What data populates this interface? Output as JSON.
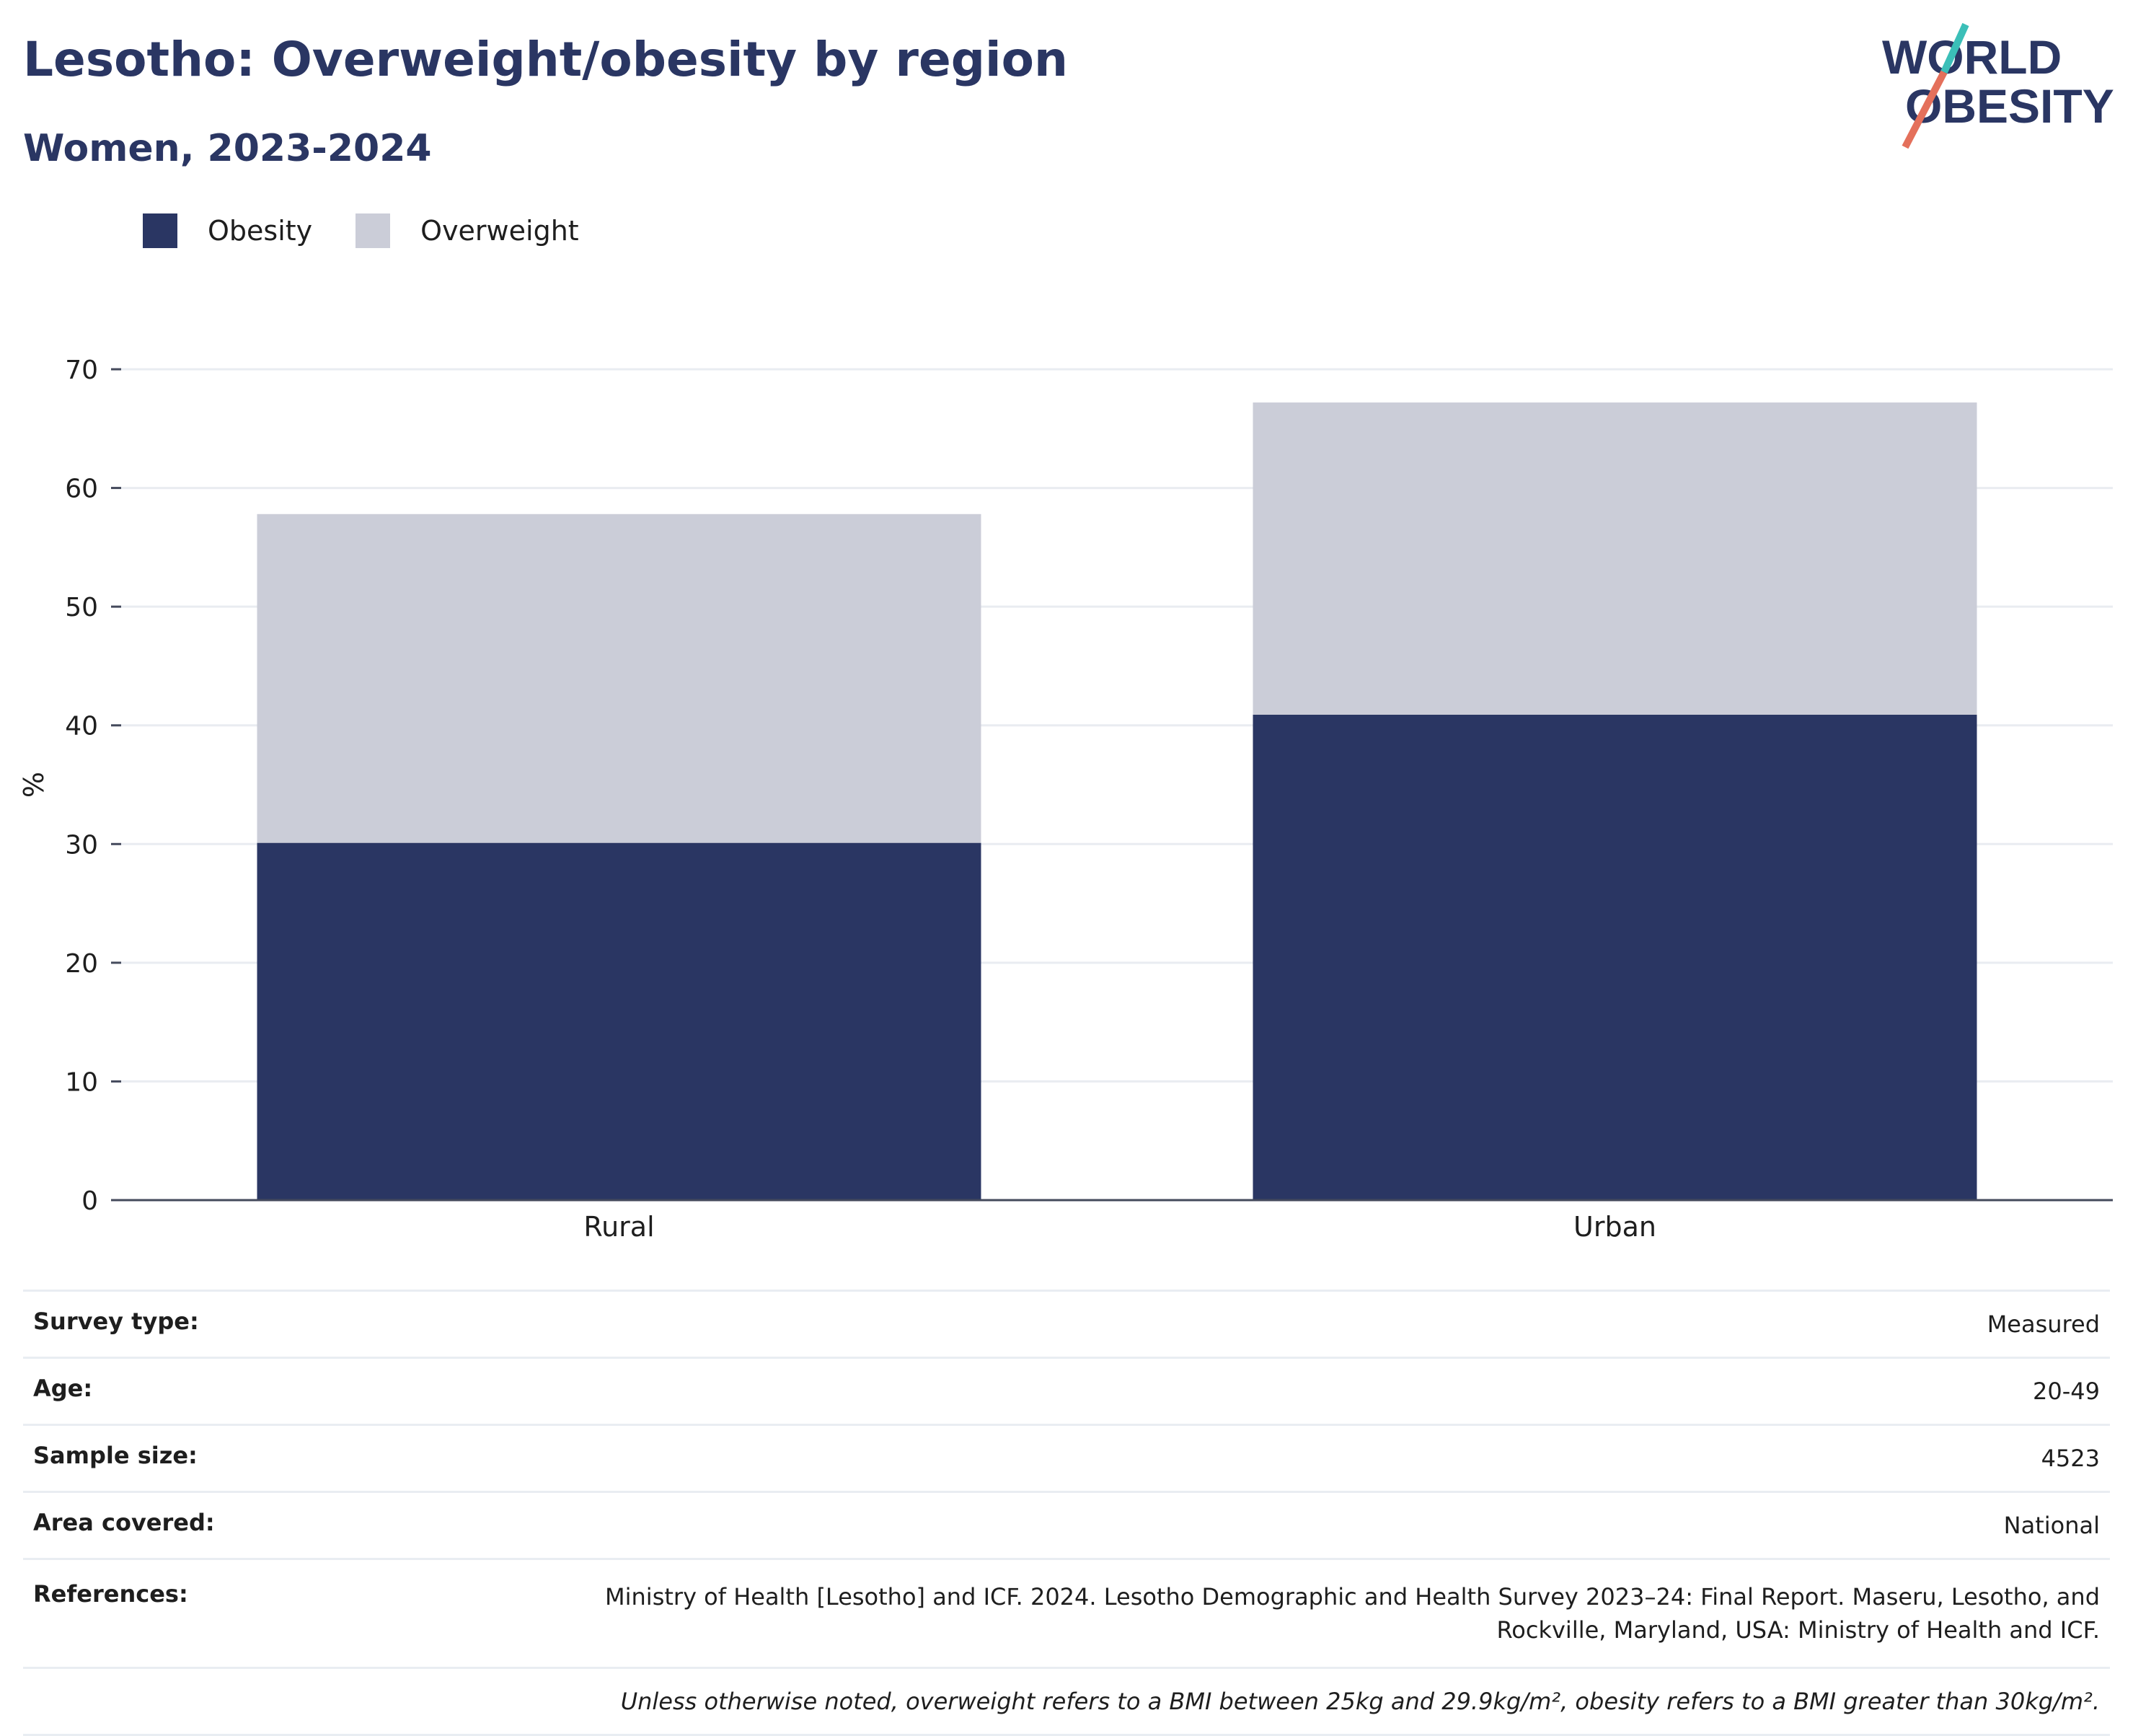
{
  "header": {
    "title": "Lesotho: Overweight/obesity by region",
    "subtitle": "Women, 2023-2024"
  },
  "logo": {
    "line1": "WORLD",
    "line2": "OBESITY",
    "accent_teal": "#3bbfb8",
    "accent_coral": "#e4705b",
    "text_color": "#2a3663"
  },
  "legend": {
    "items": [
      {
        "label": "Obesity",
        "color": "#2a3663"
      },
      {
        "label": "Overweight",
        "color": "#cbcdd8"
      }
    ]
  },
  "chart_data": {
    "type": "bar",
    "stacked": true,
    "categories": [
      "Rural",
      "Urban"
    ],
    "series": [
      {
        "name": "Obesity",
        "color": "#2a3663",
        "values": [
          30.1,
          40.9
        ]
      },
      {
        "name": "Overweight",
        "color": "#cbcdd8",
        "values": [
          27.7,
          26.3
        ]
      }
    ],
    "totals": [
      57.8,
      67.2
    ],
    "ylabel": "%",
    "ylim": [
      0,
      70
    ],
    "yticks": [
      0,
      10,
      20,
      30,
      40,
      50,
      60,
      70
    ],
    "grid": true,
    "legend_position": "top-left"
  },
  "info": {
    "rows": [
      {
        "key": "Survey type:",
        "value": "Measured"
      },
      {
        "key": "Age:",
        "value": "20-49"
      },
      {
        "key": "Sample size:",
        "value": "4523"
      },
      {
        "key": "Area covered:",
        "value": "National"
      },
      {
        "key": "References:",
        "value": "Ministry of Health [Lesotho] and ICF. 2024. Lesotho Demographic and Health Survey 2023–24: Final Report. Maseru, Lesotho, and Rockville, Maryland, USA: Ministry of Health and ICF."
      }
    ],
    "note": "Unless otherwise noted, overweight refers to a BMI between 25kg and 29.9kg/m², obesity refers to a BMI greater than 30kg/m²."
  }
}
